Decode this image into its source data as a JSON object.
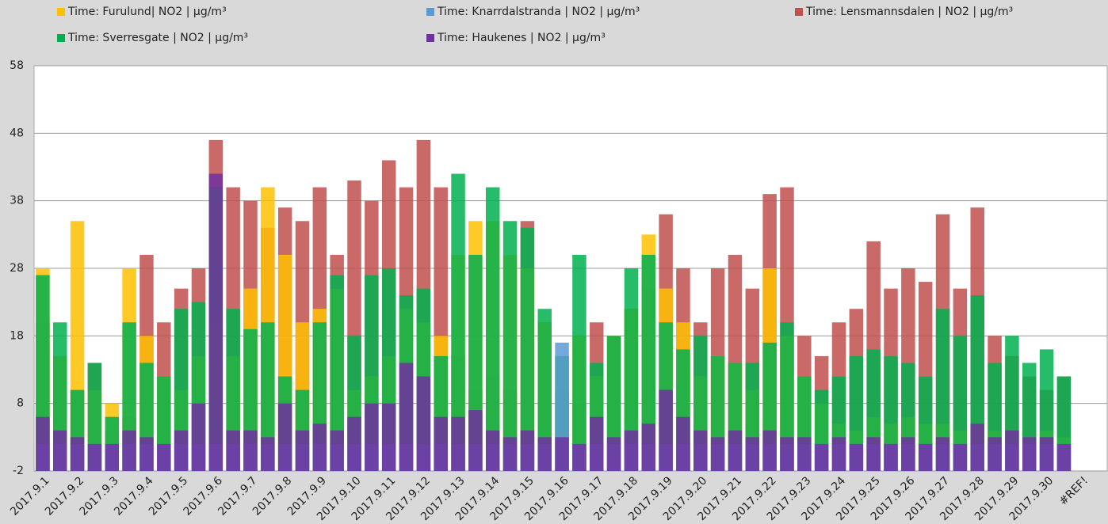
{
  "chart_data": {
    "type": "bar",
    "categories": [
      "2017.9.1",
      null,
      "2017.9.2",
      null,
      "2017.9.3",
      null,
      "2017.9.4",
      null,
      "2017.9.5",
      null,
      "2017.9.6",
      null,
      "2017.9.7",
      null,
      "2017.9.8",
      null,
      "2017.9.9",
      null,
      "2017.9.10",
      null,
      "2017.9.11",
      null,
      "2017.9.12",
      null,
      "2017.9.13",
      null,
      "2017.9.14",
      null,
      "2017.9.15",
      null,
      "2017.9.16",
      null,
      "2017.9.17",
      null,
      "2017.9.18",
      null,
      "2017.9.19",
      null,
      "2017.9.20",
      null,
      "2017.9.21",
      null,
      "2017.9.22",
      null,
      "2017.9.23",
      null,
      "2017.9.24",
      null,
      "2017.9.25",
      null,
      "2017.9.26",
      null,
      "2017.9.27",
      null,
      "2017.9.28",
      null,
      "2017.9.29",
      null,
      "2017.9.30",
      null,
      "#REF!"
    ],
    "series": [
      {
        "name": "Time: Lensmannsdalen | NO2 | µg/m³",
        "color": "#c0504d",
        "values": [
          20,
          15,
          10,
          14,
          4,
          6,
          30,
          20,
          25,
          28,
          47,
          40,
          38,
          34,
          37,
          35,
          40,
          30,
          41,
          38,
          44,
          40,
          47,
          40,
          15,
          10,
          12,
          10,
          35,
          20,
          10,
          8,
          20,
          18,
          22,
          25,
          36,
          28,
          20,
          28,
          30,
          25,
          39,
          40,
          18,
          15,
          20,
          22,
          32,
          25,
          28,
          26,
          36,
          25,
          37,
          18,
          15,
          12,
          10,
          12,
          null
        ]
      },
      {
        "name": "Time: Furulund| NO2 | µg/m³",
        "color": "#ffc000",
        "values": [
          28,
          15,
          35,
          10,
          8,
          28,
          18,
          12,
          10,
          15,
          20,
          15,
          25,
          40,
          30,
          20,
          22,
          25,
          10,
          12,
          15,
          22,
          20,
          18,
          30,
          35,
          35,
          30,
          28,
          20,
          15,
          18,
          12,
          18,
          22,
          33,
          25,
          20,
          12,
          15,
          14,
          10,
          28,
          18,
          12,
          8,
          5,
          4,
          6,
          5,
          6,
          5,
          5,
          4,
          5,
          4,
          4,
          3,
          4,
          3,
          null
        ]
      },
      {
        "name": "Time: Sverresgate  | NO2 | µg/m³",
        "color": "#00b050",
        "values": [
          27,
          20,
          10,
          14,
          6,
          20,
          14,
          12,
          22,
          23,
          40,
          22,
          19,
          20,
          12,
          10,
          20,
          27,
          18,
          27,
          28,
          24,
          25,
          15,
          42,
          30,
          40,
          35,
          34,
          22,
          15,
          30,
          14,
          18,
          28,
          30,
          20,
          16,
          18,
          15,
          14,
          14,
          17,
          20,
          12,
          10,
          12,
          15,
          16,
          15,
          14,
          12,
          22,
          18,
          24,
          14,
          18,
          14,
          16,
          12,
          null
        ]
      },
      {
        "name": "Time: Knarrdalstranda | NO2 | µg/m³",
        "color": "#5b9bd5",
        "values": [
          2,
          2,
          2,
          2,
          2,
          2,
          2,
          2,
          2,
          2,
          2,
          2,
          2,
          2,
          2,
          2,
          2,
          2,
          2,
          2,
          2,
          2,
          2,
          2,
          2,
          2,
          2,
          2,
          2,
          2,
          17,
          2,
          2,
          2,
          2,
          2,
          2,
          2,
          2,
          2,
          2,
          2,
          2,
          2,
          2,
          2,
          2,
          2,
          2,
          2,
          2,
          2,
          2,
          2,
          2,
          2,
          2,
          2,
          2,
          2,
          null
        ]
      },
      {
        "name": "Time: Haukenes | NO2 | µg/m³",
        "color": "#7030a0",
        "values": [
          6,
          4,
          3,
          2,
          2,
          4,
          3,
          2,
          4,
          8,
          42,
          4,
          4,
          3,
          8,
          4,
          5,
          4,
          6,
          8,
          8,
          14,
          12,
          6,
          6,
          7,
          4,
          3,
          4,
          3,
          3,
          2,
          6,
          3,
          4,
          5,
          10,
          6,
          4,
          3,
          4,
          3,
          4,
          3,
          3,
          2,
          3,
          2,
          3,
          2,
          3,
          2,
          3,
          2,
          5,
          3,
          4,
          3,
          3,
          2,
          null
        ]
      }
    ],
    "ylim": [
      -2,
      58
    ],
    "yticks": [
      -2,
      8,
      18,
      28,
      38,
      48,
      58
    ],
    "grid": true
  }
}
